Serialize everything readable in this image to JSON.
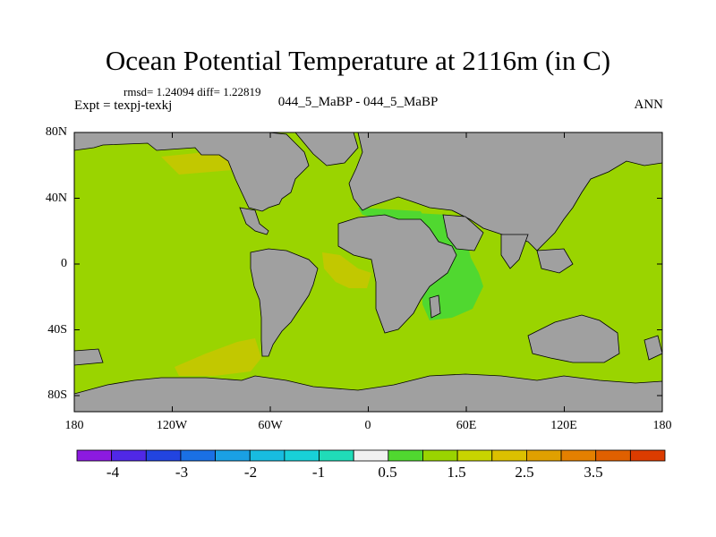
{
  "title": "Ocean Potential Temperature at 2116m (in C)",
  "stats": "rmsd= 1.24094 diff= 1.22819",
  "experiment": "Expt = texpj-texkj",
  "runs": "044_5_MaBP - 044_5_MaBP",
  "season": "ANN",
  "lat_labels": [
    "80N",
    "40N",
    "0",
    "40S",
    "80S"
  ],
  "lon_labels": [
    "180",
    "120W",
    "60W",
    "0",
    "60E",
    "120E",
    "180"
  ],
  "colors": {
    "land": "#a0a0a0",
    "ocean_main": "#9ad400",
    "ocean_green": "#50d830",
    "ocean_warm": "#c2c800",
    "ocean_yellow": "#d4c400"
  },
  "colorbar": {
    "colors": [
      "#8c1ae0",
      "#5028e6",
      "#2244e0",
      "#1a70e4",
      "#1aa0e4",
      "#18bce0",
      "#18d0d8",
      "#20dcb8",
      "#f0f0f0",
      "#50d830",
      "#9ad400",
      "#c8d400",
      "#dcc000",
      "#e0a000",
      "#e48000",
      "#e06000",
      "#dc3c00"
    ],
    "labels": [
      "-4",
      "-3",
      "-2",
      "-1",
      "0.5",
      "1.5",
      "2.5",
      "3.5"
    ]
  }
}
